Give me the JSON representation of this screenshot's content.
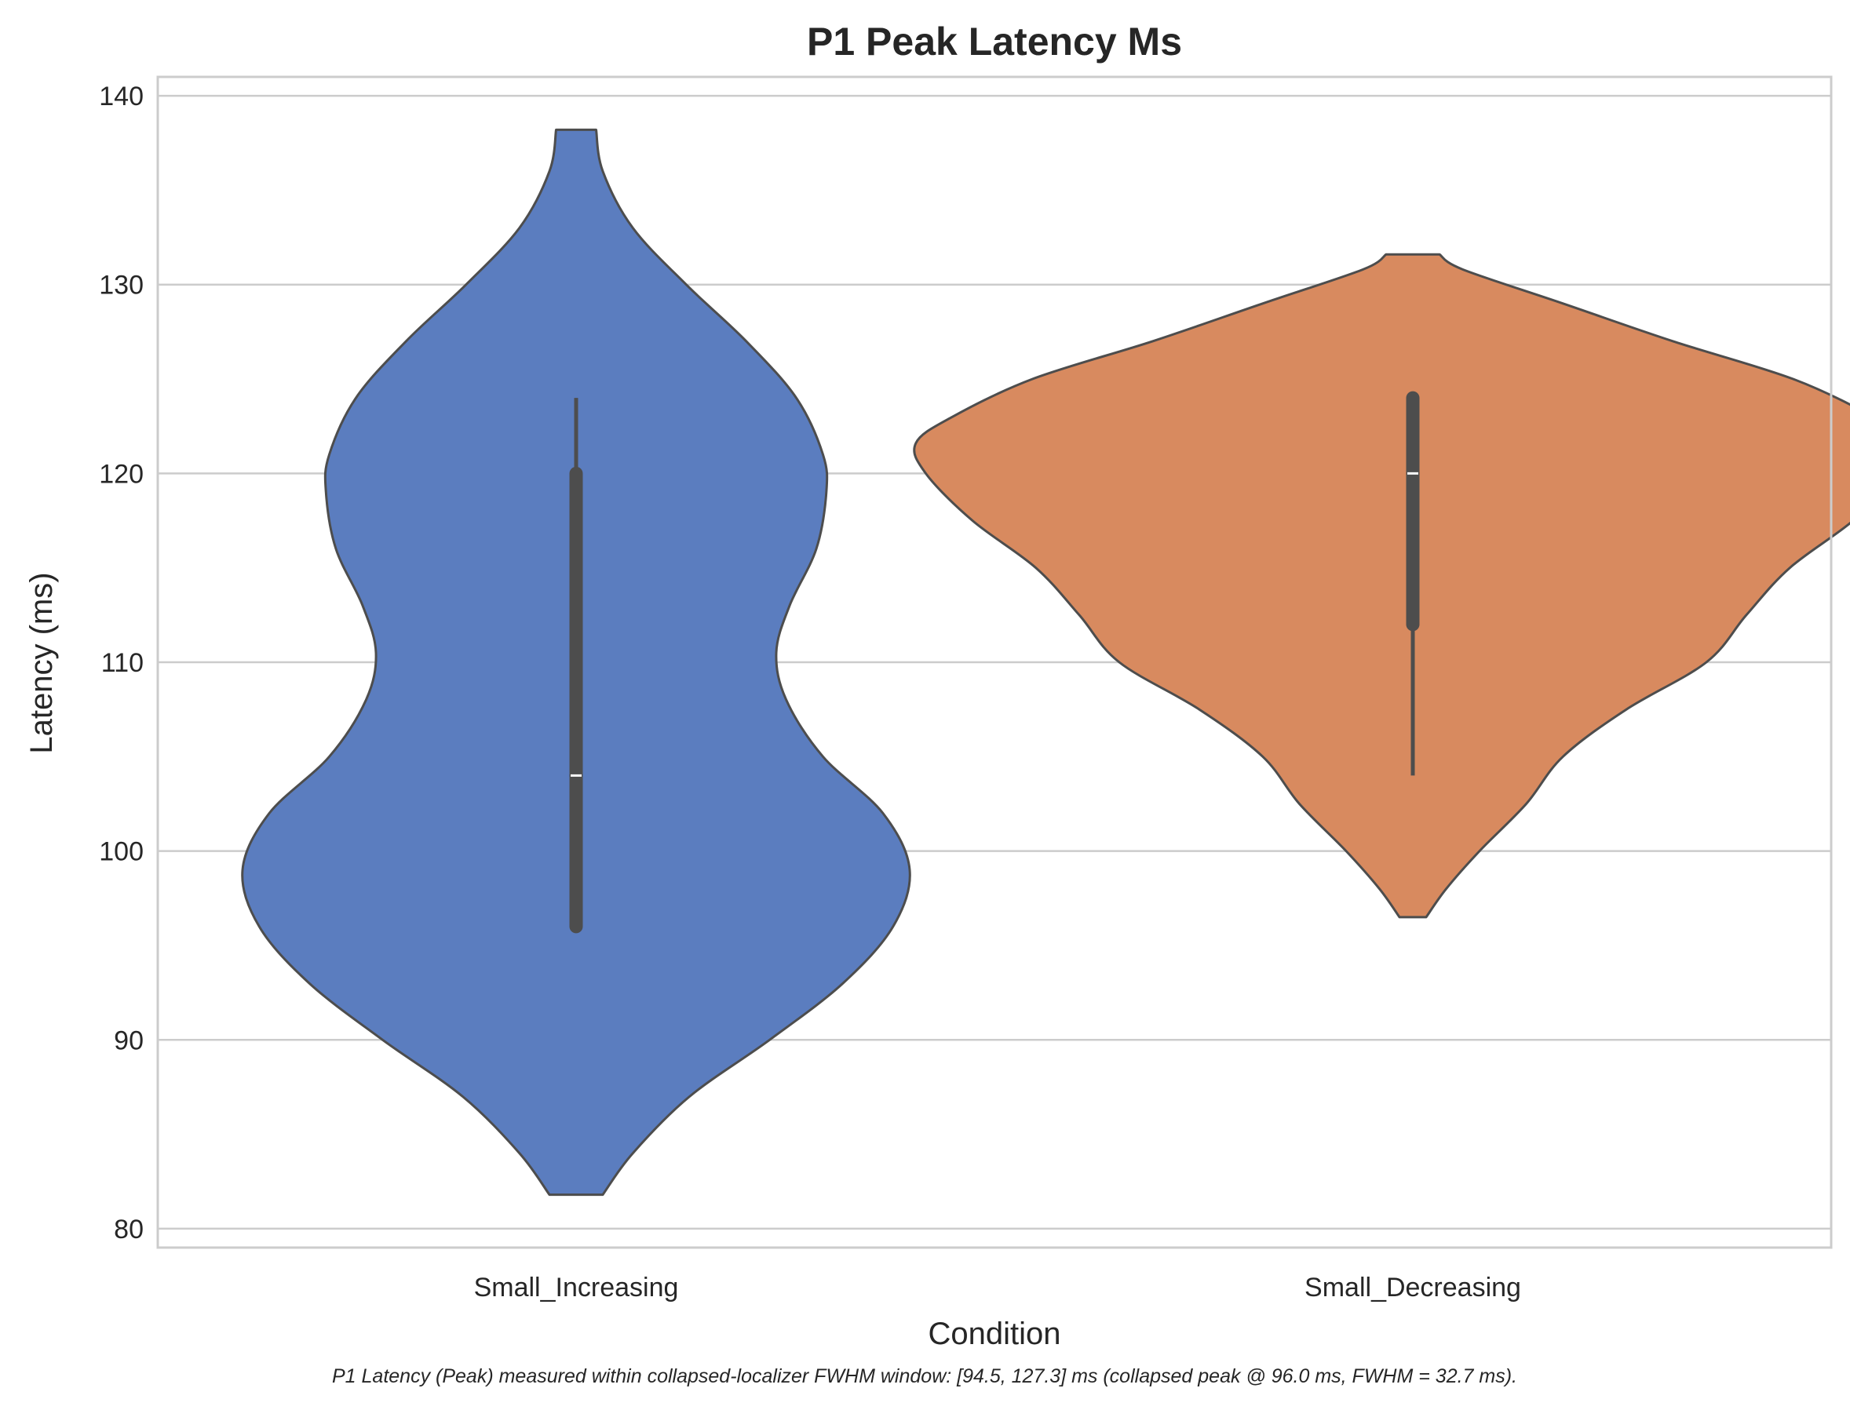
{
  "chart_data": {
    "type": "violin",
    "title": "P1 Peak Latency Ms",
    "xlabel": "Condition",
    "ylabel": "Latency (ms)",
    "ylim": [
      79,
      141
    ],
    "yticks": [
      80,
      90,
      100,
      110,
      120,
      130,
      140
    ],
    "grid": "horizontal",
    "legend": "none",
    "categories": [
      "Small_Increasing",
      "Small_Decreasing"
    ],
    "series": [
      {
        "category": "Small_Increasing",
        "color": "#5b7dbf",
        "range": [
          81.8,
          138.2
        ],
        "density": [
          [
            81.8,
            0.08
          ],
          [
            84,
            0.17
          ],
          [
            87,
            0.34
          ],
          [
            90,
            0.58
          ],
          [
            93,
            0.8
          ],
          [
            96,
            0.95
          ],
          [
            99,
            1.0
          ],
          [
            102,
            0.92
          ],
          [
            105,
            0.74
          ],
          [
            108,
            0.63
          ],
          [
            110.5,
            0.6
          ],
          [
            113,
            0.64
          ],
          [
            116,
            0.72
          ],
          [
            119,
            0.75
          ],
          [
            121,
            0.74
          ],
          [
            124,
            0.66
          ],
          [
            127,
            0.51
          ],
          [
            130,
            0.33
          ],
          [
            133,
            0.17
          ],
          [
            136,
            0.08
          ],
          [
            138.2,
            0.06
          ]
        ],
        "median": 104,
        "q1": 96,
        "q3": 120,
        "whisker_low": 96,
        "whisker_high": 124
      },
      {
        "category": "Small_Decreasing",
        "color": "#d88a5f",
        "range": [
          96.5,
          131.6
        ],
        "density": [
          [
            96.5,
            0.04
          ],
          [
            98,
            0.1
          ],
          [
            100,
            0.2
          ],
          [
            102.5,
            0.34
          ],
          [
            105,
            0.45
          ],
          [
            107.5,
            0.64
          ],
          [
            110,
            0.88
          ],
          [
            112.5,
            1.0
          ],
          [
            115,
            1.13
          ],
          [
            117.5,
            1.32
          ],
          [
            120,
            1.46
          ],
          [
            121.6,
            1.49
          ],
          [
            123,
            1.38
          ],
          [
            125,
            1.14
          ],
          [
            127,
            0.78
          ],
          [
            129,
            0.45
          ],
          [
            130.8,
            0.15
          ],
          [
            131.6,
            0.08
          ]
        ],
        "median": 120,
        "q1": 112,
        "q3": 124,
        "whisker_low": 104,
        "whisker_high": 124
      }
    ],
    "caption": "P1 Latency (Peak) measured within collapsed-localizer FWHM window: [94.5, 127.3] ms (collapsed peak @ 96.0 ms, FWHM = 32.7 ms)."
  }
}
